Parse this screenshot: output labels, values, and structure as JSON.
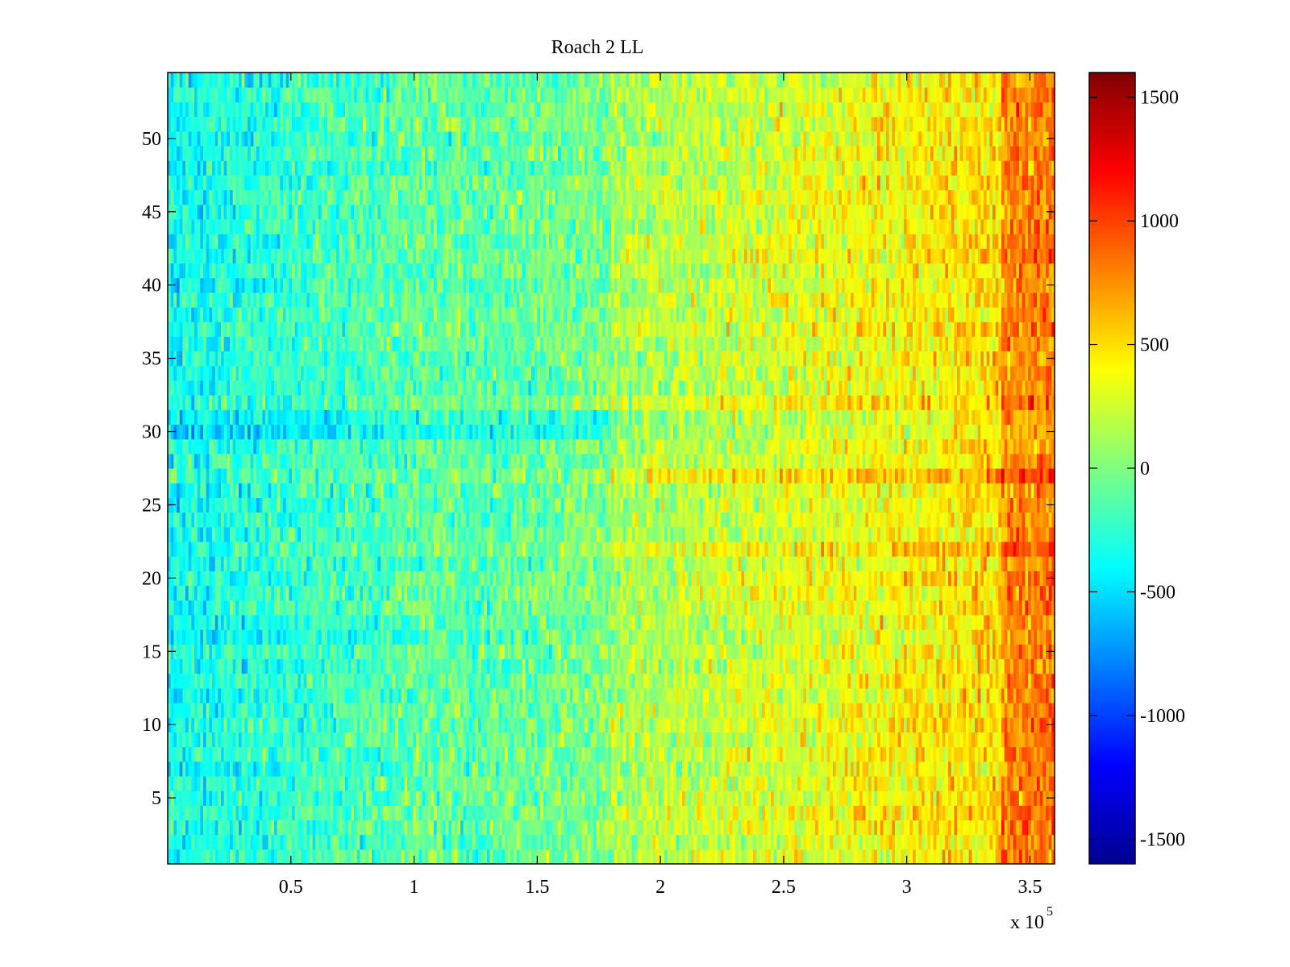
{
  "chart_data": {
    "type": "heatmap",
    "title": "Roach 2 LL",
    "xlabel": "",
    "ylabel": "",
    "x_multiplier_label": "x 10",
    "x_multiplier_exponent": "5",
    "xlim": [
      0,
      360000
    ],
    "ylim": [
      0.5,
      54.5
    ],
    "rows": 54,
    "colormap": "jet",
    "clim": [
      -1600,
      1600
    ],
    "x_ticks": [
      {
        "value": 50000,
        "label": "0.5"
      },
      {
        "value": 100000,
        "label": "1"
      },
      {
        "value": 150000,
        "label": "1.5"
      },
      {
        "value": 200000,
        "label": "2"
      },
      {
        "value": 250000,
        "label": "2.5"
      },
      {
        "value": 300000,
        "label": "3"
      },
      {
        "value": 350000,
        "label": "3.5"
      }
    ],
    "y_ticks": [
      {
        "value": 5,
        "label": "5"
      },
      {
        "value": 10,
        "label": "10"
      },
      {
        "value": 15,
        "label": "15"
      },
      {
        "value": 20,
        "label": "20"
      },
      {
        "value": 25,
        "label": "25"
      },
      {
        "value": 30,
        "label": "30"
      },
      {
        "value": 35,
        "label": "35"
      },
      {
        "value": 40,
        "label": "40"
      },
      {
        "value": 45,
        "label": "45"
      },
      {
        "value": 50,
        "label": "50"
      }
    ],
    "colorbar_ticks": [
      {
        "value": 1500,
        "label": "1500"
      },
      {
        "value": 1000,
        "label": "1000"
      },
      {
        "value": 500,
        "label": "500"
      },
      {
        "value": 0,
        "label": "0"
      },
      {
        "value": -500,
        "label": "-500"
      },
      {
        "value": -1000,
        "label": "-1000"
      },
      {
        "value": -1500,
        "label": "-1500"
      }
    ],
    "trend_description_values": {
      "mean_at_x_start": -350,
      "mean_at_x_end": 550,
      "hot_rows": [
        9,
        16,
        22,
        23,
        27,
        28,
        32
      ],
      "cold_rows": [
        9,
        16,
        23,
        28,
        30,
        31
      ]
    }
  }
}
